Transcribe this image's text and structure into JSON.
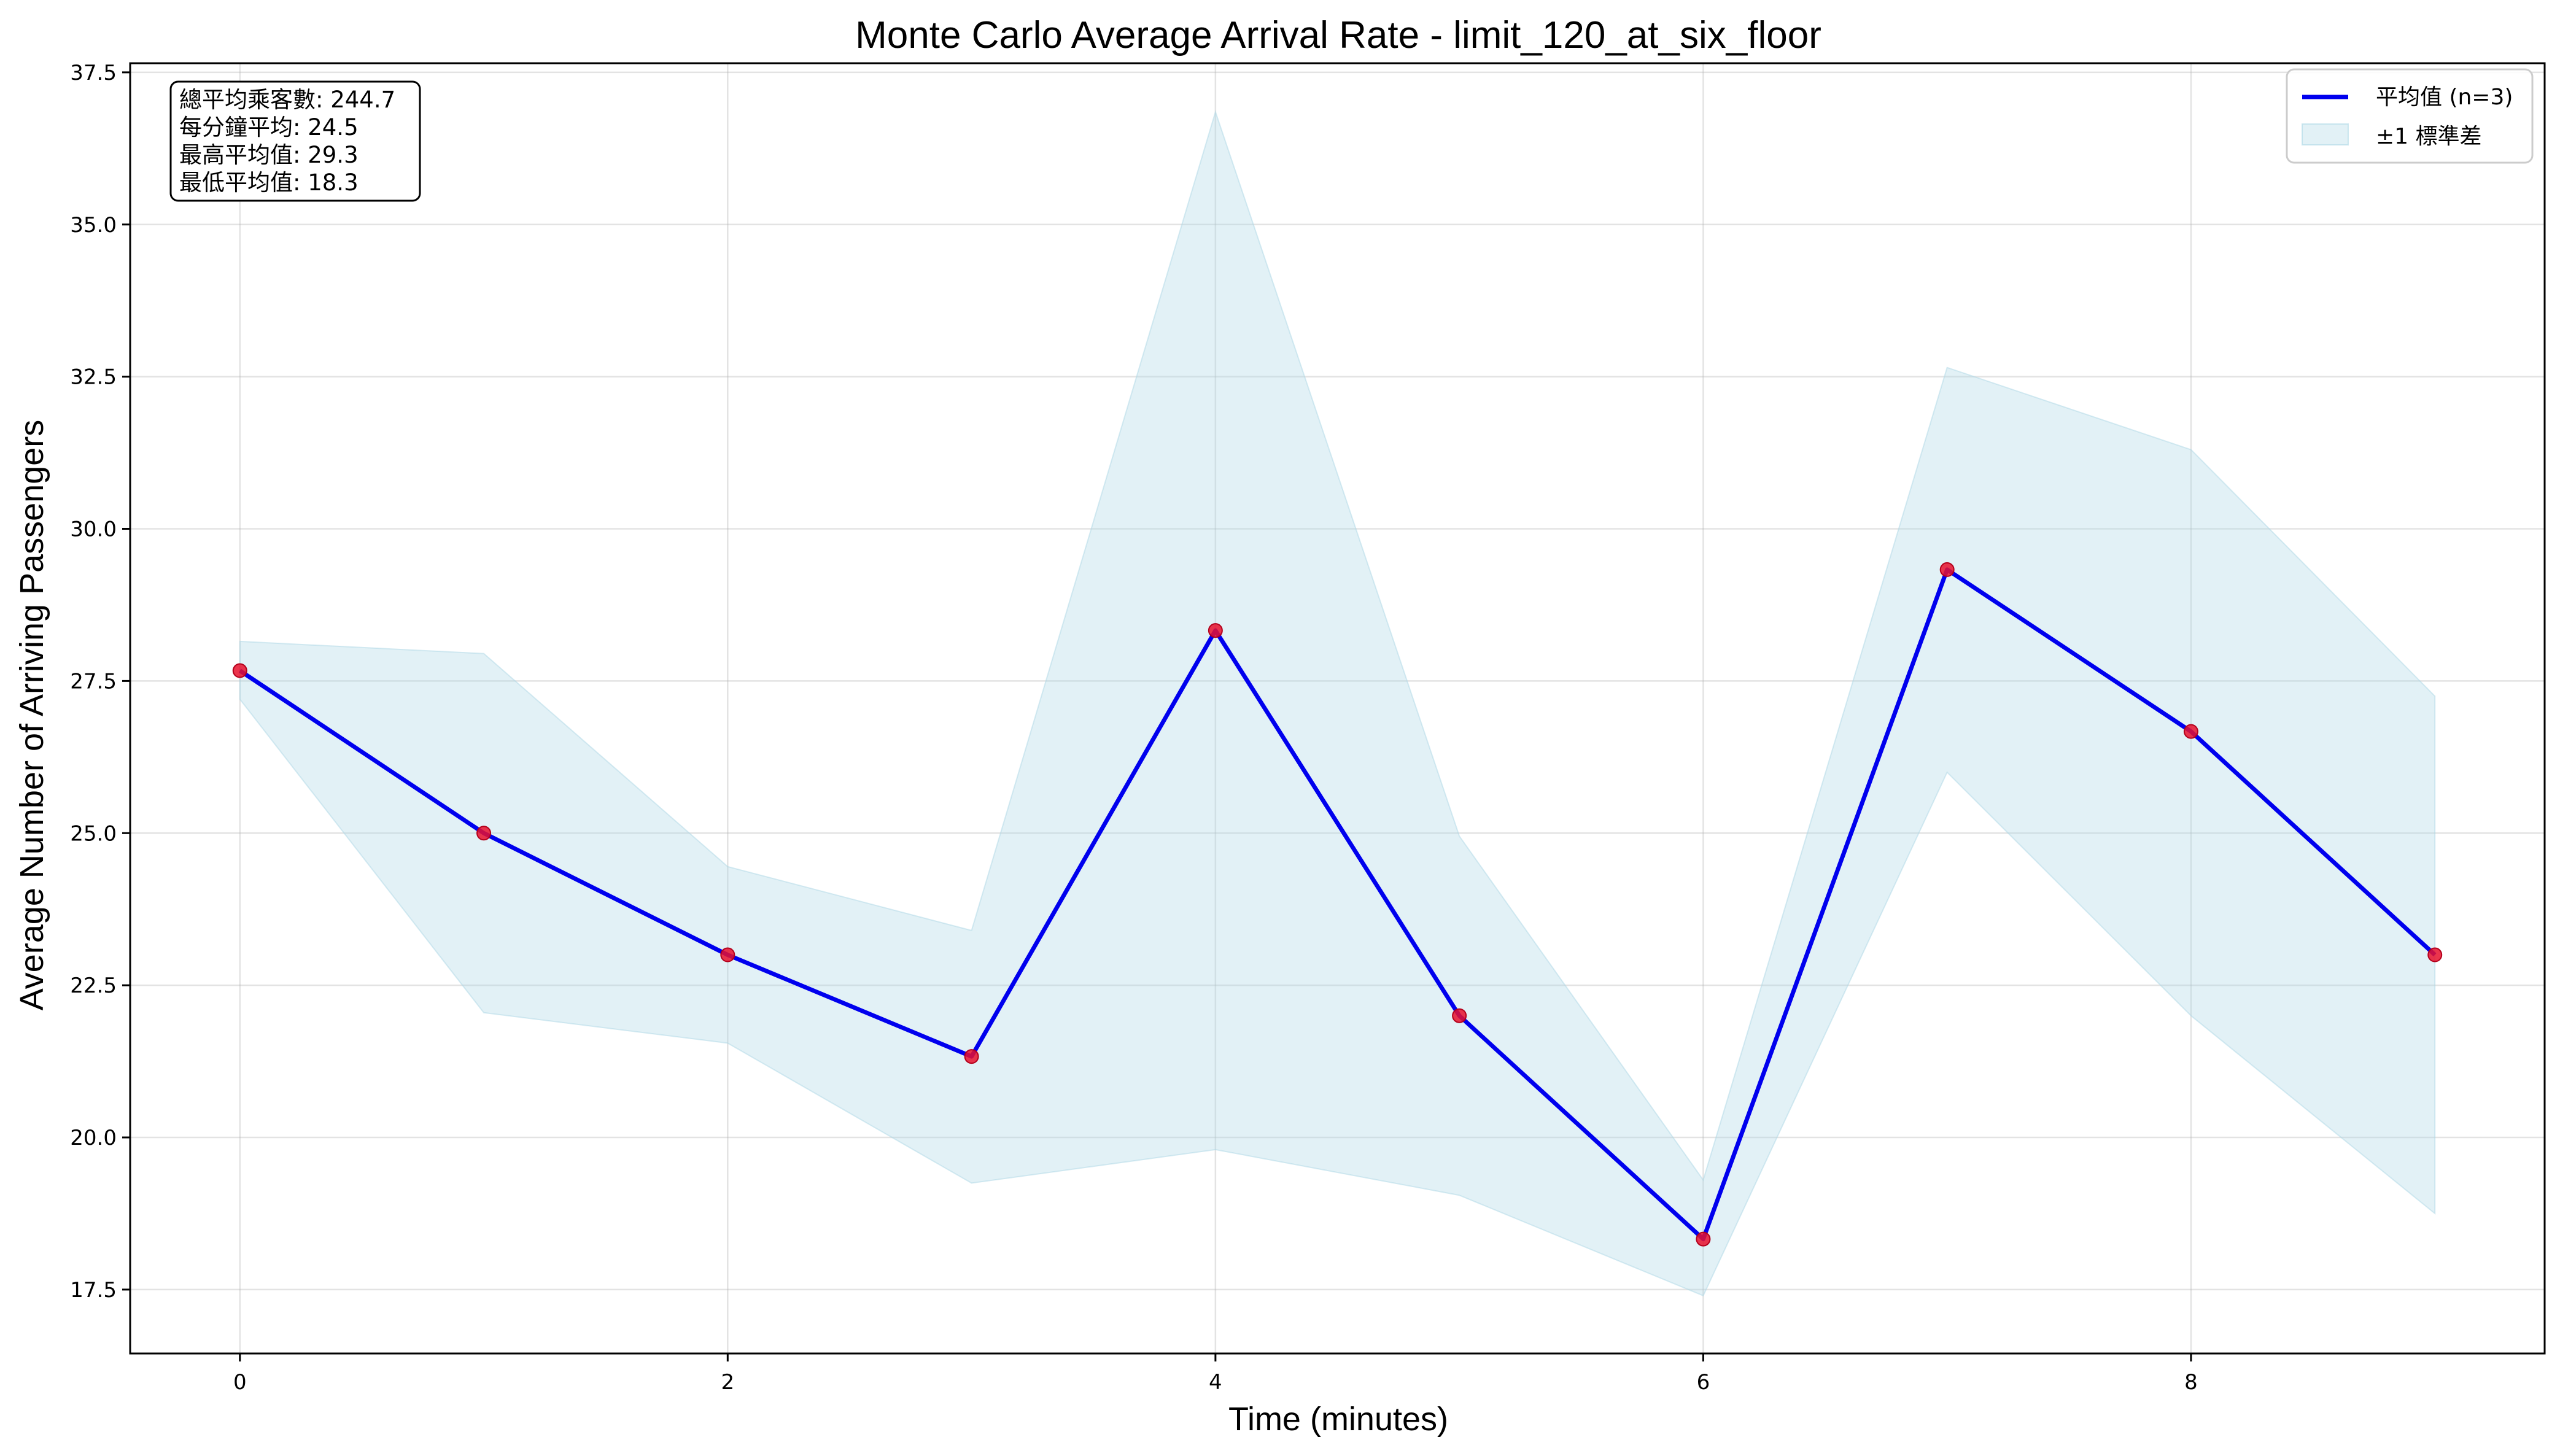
{
  "chart_data": {
    "type": "line",
    "title": "Monte Carlo Average Arrival Rate - limit_120_at_six_floor",
    "xlabel": "Time (minutes)",
    "ylabel": "Average Number of Arriving Passengers",
    "xlim": [
      -0.45,
      9.45
    ],
    "ylim": [
      16.45,
      37.65
    ],
    "xticks": [
      0,
      2,
      4,
      6,
      8
    ],
    "xtick_labels": [
      "0",
      "2",
      "4",
      "6",
      "8"
    ],
    "yticks": [
      17.5,
      20.0,
      22.5,
      25.0,
      27.5,
      30.0,
      32.5,
      35.0,
      37.5
    ],
    "ytick_labels": [
      "17.5",
      "20.0",
      "22.5",
      "25.0",
      "27.5",
      "30.0",
      "32.5",
      "35.0",
      "37.5"
    ],
    "grid": true,
    "legend_position": "top-right",
    "x": [
      0,
      1,
      2,
      3,
      4,
      5,
      6,
      7,
      8,
      9
    ],
    "series": [
      {
        "name": "平均值 (n=3)",
        "color": "#0000ee",
        "marker_color": "#e8112d",
        "values": [
          27.67,
          25.0,
          23.0,
          21.33,
          28.33,
          22.0,
          18.33,
          29.33,
          26.67,
          23.0
        ]
      }
    ],
    "band": {
      "name": "±1 標準差",
      "color": "#add8e6",
      "upper": [
        28.15,
        27.95,
        24.45,
        23.4,
        36.85,
        24.95,
        19.3,
        32.65,
        31.3,
        27.25
      ],
      "lower": [
        27.2,
        22.05,
        21.55,
        19.25,
        19.8,
        19.05,
        17.4,
        26.0,
        22.0,
        18.75
      ]
    },
    "stats_box": [
      "總平均乘客數: 244.7",
      "每分鐘平均: 24.5",
      "最高平均值: 29.3",
      "最低平均值: 18.3"
    ]
  }
}
